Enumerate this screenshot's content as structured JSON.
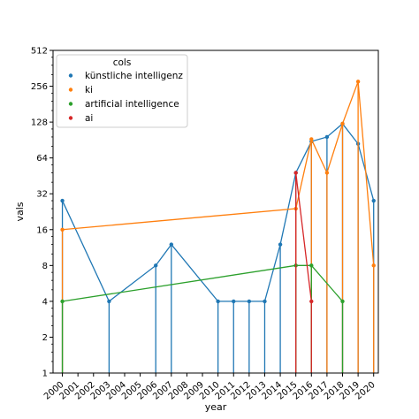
{
  "chart_data": {
    "type": "line",
    "xlabel": "year",
    "ylabel": "vals",
    "y_scale": "log2",
    "ylim": [
      1,
      512
    ],
    "xlim": [
      1999.4,
      2020.3
    ],
    "x_ticks": [
      "2000",
      "2001",
      "2002",
      "2003",
      "2004",
      "2005",
      "2006",
      "2007",
      "2008",
      "2009",
      "2010",
      "2011",
      "2012",
      "2013",
      "2014",
      "2015",
      "2016",
      "2017",
      "2018",
      "2019",
      "2020"
    ],
    "y_ticks": [
      1,
      2,
      4,
      8,
      16,
      32,
      64,
      128,
      256,
      512
    ],
    "legend": {
      "title": "cols",
      "placement": "upper-left"
    },
    "series": [
      {
        "name": "künstliche intelligenz",
        "color": "#1f77b4",
        "points": [
          {
            "x": 2000,
            "y": 28
          },
          {
            "x": 2003,
            "y": 4
          },
          {
            "x": 2006,
            "y": 8
          },
          {
            "x": 2007,
            "y": 12
          },
          {
            "x": 2010,
            "y": 4
          },
          {
            "x": 2011,
            "y": 4
          },
          {
            "x": 2012,
            "y": 4
          },
          {
            "x": 2013,
            "y": 4
          },
          {
            "x": 2014,
            "y": 12
          },
          {
            "x": 2015,
            "y": 48
          },
          {
            "x": 2016,
            "y": 88
          },
          {
            "x": 2017,
            "y": 96
          },
          {
            "x": 2018,
            "y": 124
          },
          {
            "x": 2019,
            "y": 84
          },
          {
            "x": 2020,
            "y": 28
          }
        ]
      },
      {
        "name": "ki",
        "color": "#ff7f0e",
        "points": [
          {
            "x": 2000,
            "y": 16
          },
          {
            "x": 2015,
            "y": 24
          },
          {
            "x": 2016,
            "y": 92
          },
          {
            "x": 2017,
            "y": 48
          },
          {
            "x": 2018,
            "y": 124
          },
          {
            "x": 2019,
            "y": 280
          },
          {
            "x": 2020,
            "y": 8
          }
        ]
      },
      {
        "name": "artificial intelligence",
        "color": "#2ca02c",
        "points": [
          {
            "x": 2000,
            "y": 4
          },
          {
            "x": 2015,
            "y": 8
          },
          {
            "x": 2016,
            "y": 8
          },
          {
            "x": 2018,
            "y": 4
          }
        ]
      },
      {
        "name": "ai",
        "color": "#d62728",
        "points": [
          {
            "x": 2015,
            "y": 48
          },
          {
            "x": 2016,
            "y": 4
          }
        ]
      }
    ]
  }
}
